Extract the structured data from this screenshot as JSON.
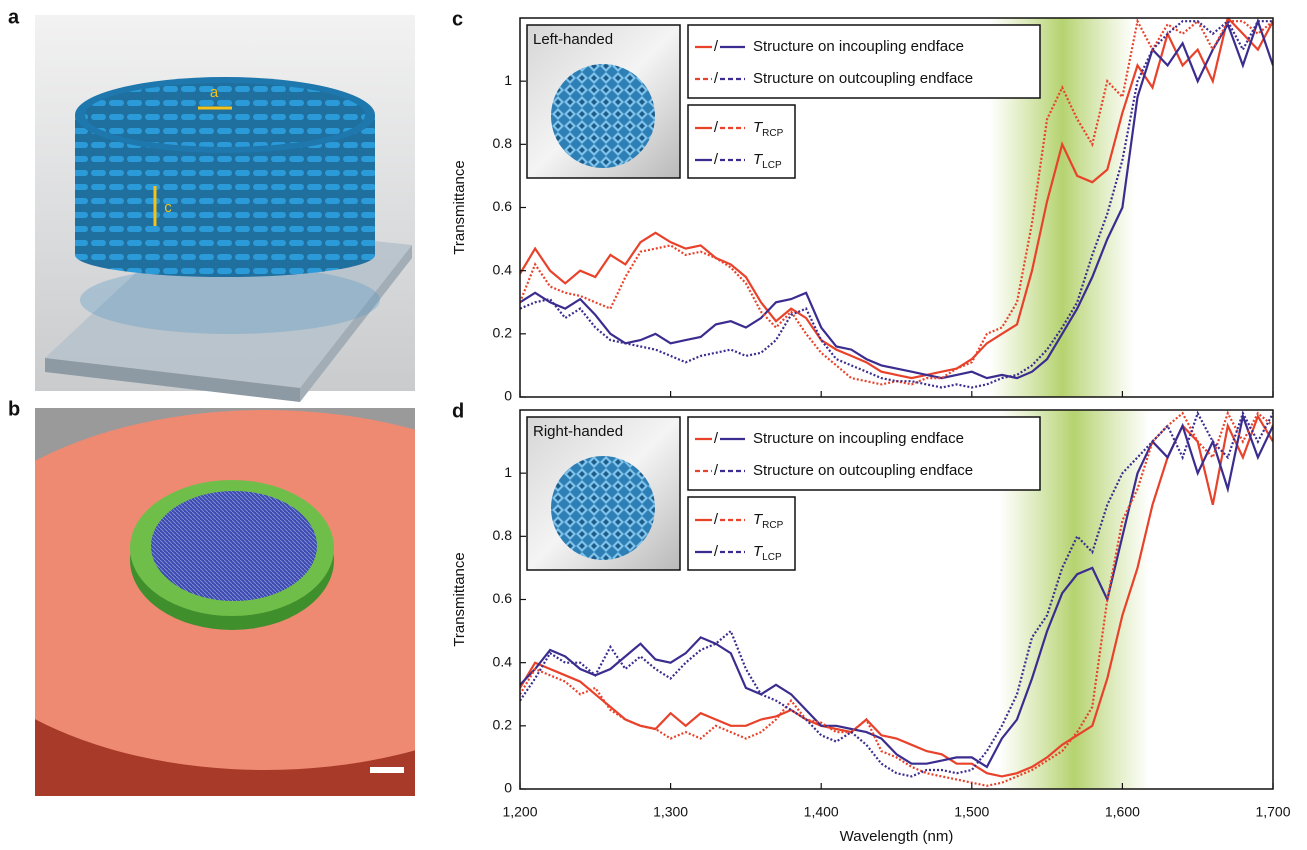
{
  "panels": {
    "a": {
      "label": "a",
      "annotations": [
        "a",
        "c"
      ]
    },
    "b": {
      "label": "b"
    }
  },
  "chart_data": [
    {
      "type": "line",
      "panel_label": "c",
      "inset_label": "Left-handed",
      "ylabel": "Transmittance",
      "x": [
        1200,
        1210,
        1220,
        1230,
        1240,
        1250,
        1260,
        1270,
        1280,
        1290,
        1300,
        1310,
        1320,
        1330,
        1340,
        1350,
        1360,
        1370,
        1380,
        1390,
        1400,
        1410,
        1420,
        1430,
        1440,
        1450,
        1460,
        1470,
        1480,
        1490,
        1500,
        1510,
        1520,
        1530,
        1540,
        1550,
        1560,
        1570,
        1580,
        1590,
        1600,
        1610,
        1620,
        1630,
        1640,
        1650,
        1660,
        1670,
        1680,
        1690,
        1700
      ],
      "xlim": [
        1200,
        1700
      ],
      "xticks": [
        1200,
        1300,
        1400,
        1500,
        1600,
        1700
      ],
      "ylim": [
        0,
        1.2
      ],
      "yticks": [
        0,
        0.2,
        0.4,
        0.6,
        0.8,
        1
      ],
      "band": [
        1512,
        1608
      ],
      "legend": {
        "entries": [
          "Structure on incoupling endface",
          "Structure on outcoupling endface"
        ],
        "separator": "/",
        "polarizations": [
          {
            "symbol": "T",
            "subscript": "RCP"
          },
          {
            "symbol": "T",
            "subscript": "LCP"
          }
        ]
      },
      "series": [
        {
          "color": "#e8422b",
          "style": "solid",
          "values": [
            0.39,
            0.47,
            0.4,
            0.36,
            0.4,
            0.38,
            0.45,
            0.42,
            0.49,
            0.52,
            0.49,
            0.47,
            0.48,
            0.44,
            0.42,
            0.38,
            0.3,
            0.24,
            0.28,
            0.25,
            0.18,
            0.15,
            0.13,
            0.11,
            0.08,
            0.07,
            0.06,
            0.07,
            0.08,
            0.09,
            0.12,
            0.17,
            0.2,
            0.23,
            0.4,
            0.62,
            0.8,
            0.7,
            0.68,
            0.72,
            0.9,
            1.05,
            0.98,
            1.15,
            1.05,
            1.1,
            1.0,
            1.2,
            1.15,
            1.1,
            1.19
          ]
        },
        {
          "color": "#3b2d8f",
          "style": "solid",
          "values": [
            0.3,
            0.33,
            0.3,
            0.28,
            0.31,
            0.26,
            0.2,
            0.17,
            0.18,
            0.2,
            0.17,
            0.18,
            0.19,
            0.23,
            0.24,
            0.22,
            0.25,
            0.3,
            0.31,
            0.33,
            0.22,
            0.16,
            0.15,
            0.12,
            0.1,
            0.09,
            0.08,
            0.07,
            0.06,
            0.07,
            0.08,
            0.06,
            0.07,
            0.06,
            0.08,
            0.12,
            0.2,
            0.28,
            0.38,
            0.5,
            0.6,
            0.95,
            1.1,
            1.05,
            1.12,
            1.0,
            1.1,
            1.18,
            1.05,
            1.19,
            1.05
          ]
        },
        {
          "color": "#e8422b",
          "style": "dotted",
          "values": [
            0.3,
            0.42,
            0.35,
            0.33,
            0.32,
            0.3,
            0.28,
            0.38,
            0.46,
            0.47,
            0.48,
            0.45,
            0.46,
            0.44,
            0.41,
            0.36,
            0.27,
            0.22,
            0.27,
            0.2,
            0.14,
            0.1,
            0.06,
            0.05,
            0.04,
            0.05,
            0.04,
            0.06,
            0.06,
            0.09,
            0.11,
            0.2,
            0.22,
            0.3,
            0.55,
            0.88,
            0.98,
            0.88,
            0.8,
            1.0,
            0.95,
            1.19,
            1.1,
            1.18,
            1.15,
            1.19,
            1.1,
            1.19,
            1.19,
            1.15,
            1.19
          ]
        },
        {
          "color": "#3b2d8f",
          "style": "dotted",
          "values": [
            0.28,
            0.3,
            0.31,
            0.25,
            0.28,
            0.22,
            0.18,
            0.17,
            0.16,
            0.15,
            0.13,
            0.11,
            0.13,
            0.14,
            0.15,
            0.13,
            0.14,
            0.18,
            0.26,
            0.28,
            0.18,
            0.12,
            0.1,
            0.08,
            0.06,
            0.05,
            0.05,
            0.04,
            0.03,
            0.04,
            0.03,
            0.04,
            0.06,
            0.07,
            0.1,
            0.15,
            0.22,
            0.3,
            0.45,
            0.58,
            0.75,
            1.0,
            1.1,
            1.15,
            1.19,
            1.19,
            1.15,
            1.19,
            1.1,
            1.19,
            1.19
          ]
        }
      ]
    },
    {
      "type": "line",
      "panel_label": "d",
      "inset_label": "Right-handed",
      "ylabel": "Transmittance",
      "xlabel": "Wavelength (nm)",
      "x": [
        1200,
        1210,
        1220,
        1230,
        1240,
        1250,
        1260,
        1270,
        1280,
        1290,
        1300,
        1310,
        1320,
        1330,
        1340,
        1350,
        1360,
        1370,
        1380,
        1390,
        1400,
        1410,
        1420,
        1430,
        1440,
        1450,
        1460,
        1470,
        1480,
        1490,
        1500,
        1510,
        1520,
        1530,
        1540,
        1550,
        1560,
        1570,
        1580,
        1590,
        1600,
        1610,
        1620,
        1630,
        1640,
        1650,
        1660,
        1670,
        1680,
        1690,
        1700
      ],
      "xlim": [
        1200,
        1700
      ],
      "xticks": [
        {
          "value": 1200,
          "label": "1,200"
        },
        {
          "value": 1300,
          "label": "1,300"
        },
        {
          "value": 1400,
          "label": "1,400"
        },
        {
          "value": 1500,
          "label": "1,500"
        },
        {
          "value": 1600,
          "label": "1,600"
        },
        {
          "value": 1700,
          "label": "1,700"
        }
      ],
      "ylim": [
        0,
        1.2
      ],
      "yticks": [
        0,
        0.2,
        0.4,
        0.6,
        0.8,
        1
      ],
      "band": [
        1518,
        1618
      ],
      "legend": {
        "entries": [
          "Structure on incoupling endface",
          "Structure on outcoupling endface"
        ],
        "separator": "/",
        "polarizations": [
          {
            "symbol": "T",
            "subscript": "RCP"
          },
          {
            "symbol": "T",
            "subscript": "LCP"
          }
        ]
      },
      "series": [
        {
          "color": "#e8422b",
          "style": "solid",
          "values": [
            0.32,
            0.4,
            0.38,
            0.36,
            0.34,
            0.3,
            0.26,
            0.22,
            0.2,
            0.19,
            0.24,
            0.2,
            0.24,
            0.22,
            0.2,
            0.2,
            0.22,
            0.23,
            0.25,
            0.22,
            0.2,
            0.19,
            0.18,
            0.22,
            0.17,
            0.16,
            0.14,
            0.12,
            0.11,
            0.08,
            0.08,
            0.05,
            0.04,
            0.05,
            0.07,
            0.1,
            0.14,
            0.17,
            0.2,
            0.35,
            0.55,
            0.7,
            0.9,
            1.05,
            1.15,
            1.1,
            0.9,
            1.15,
            1.05,
            1.18,
            1.1
          ]
        },
        {
          "color": "#3b2d8f",
          "style": "solid",
          "values": [
            0.33,
            0.38,
            0.44,
            0.42,
            0.38,
            0.36,
            0.38,
            0.42,
            0.46,
            0.41,
            0.4,
            0.43,
            0.48,
            0.46,
            0.43,
            0.32,
            0.3,
            0.33,
            0.3,
            0.25,
            0.2,
            0.2,
            0.19,
            0.18,
            0.16,
            0.11,
            0.08,
            0.08,
            0.09,
            0.1,
            0.1,
            0.07,
            0.16,
            0.22,
            0.35,
            0.5,
            0.62,
            0.68,
            0.7,
            0.6,
            0.8,
            1.0,
            1.1,
            1.05,
            1.15,
            1.0,
            1.1,
            0.95,
            1.18,
            1.05,
            1.15
          ]
        },
        {
          "color": "#e8422b",
          "style": "dotted",
          "values": [
            0.3,
            0.38,
            0.36,
            0.34,
            0.3,
            0.32,
            0.25,
            0.22,
            0.2,
            0.19,
            0.16,
            0.18,
            0.16,
            0.2,
            0.18,
            0.16,
            0.18,
            0.22,
            0.28,
            0.22,
            0.21,
            0.18,
            0.18,
            0.22,
            0.12,
            0.1,
            0.07,
            0.05,
            0.04,
            0.03,
            0.02,
            0.01,
            0.02,
            0.04,
            0.06,
            0.09,
            0.12,
            0.18,
            0.26,
            0.6,
            0.85,
            0.95,
            1.1,
            1.15,
            1.19,
            1.1,
            1.05,
            1.19,
            1.1,
            1.19,
            1.15
          ]
        },
        {
          "color": "#3b2d8f",
          "style": "dotted",
          "values": [
            0.28,
            0.35,
            0.43,
            0.4,
            0.4,
            0.36,
            0.45,
            0.38,
            0.42,
            0.38,
            0.35,
            0.4,
            0.44,
            0.46,
            0.5,
            0.38,
            0.3,
            0.28,
            0.25,
            0.22,
            0.17,
            0.15,
            0.18,
            0.14,
            0.08,
            0.05,
            0.04,
            0.06,
            0.06,
            0.05,
            0.06,
            0.12,
            0.2,
            0.3,
            0.48,
            0.55,
            0.7,
            0.8,
            0.75,
            0.9,
            1.0,
            1.05,
            1.1,
            1.15,
            1.05,
            1.19,
            1.1,
            1.05,
            1.19,
            1.1,
            1.19
          ]
        }
      ]
    }
  ]
}
